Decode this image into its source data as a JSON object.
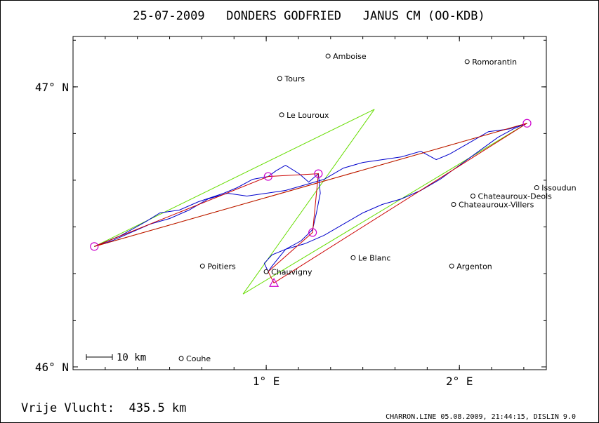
{
  "title": "25-07-2009   DONDERS GODFRIED   JANUS CM (OO-KDB)",
  "footer_left": "Vrije Vlucht:  435.5 km",
  "footer_right": "CHARRON.LINE 05.08.2009, 21:44:15, DISLIN 9.0",
  "scale_label": "10 km",
  "colors": {
    "frame": "#000000",
    "track": "#0000cc",
    "route": "#cc0000",
    "sector": "#66dd00",
    "turnpoint": "#cc00cc"
  },
  "map_data": {
    "lon_range": [
      0.0,
      2.45
    ],
    "lat_range": [
      45.99,
      47.18
    ],
    "lon_ticks": [
      {
        "value": 1,
        "label": "1° E"
      },
      {
        "value": 2,
        "label": "2° E"
      }
    ],
    "lat_ticks": [
      {
        "value": 46,
        "label": "46° N"
      },
      {
        "value": 47,
        "label": "47° N"
      }
    ],
    "cities": [
      {
        "name": "Amboise",
        "lon": 1.32,
        "lat": 47.11
      },
      {
        "name": "Tours",
        "lon": 1.07,
        "lat": 47.03
      },
      {
        "name": "Romorantin",
        "lon": 2.04,
        "lat": 47.09
      },
      {
        "name": "Le Louroux",
        "lon": 1.08,
        "lat": 46.9
      },
      {
        "name": "Issoudun",
        "lon": 2.4,
        "lat": 46.64
      },
      {
        "name": "Chateauroux-Deols",
        "lon": 2.07,
        "lat": 46.61
      },
      {
        "name": "Chateauroux-Villers",
        "lon": 1.97,
        "lat": 46.58
      },
      {
        "name": "Poitiers",
        "lon": 0.67,
        "lat": 46.36
      },
      {
        "name": "Le Blanc",
        "lon": 1.45,
        "lat": 46.39
      },
      {
        "name": "Argenton",
        "lon": 1.96,
        "lat": 46.36
      },
      {
        "name": "Chauvigny",
        "lon": 1.0,
        "lat": 46.34
      },
      {
        "name": "Couhe",
        "lon": 0.56,
        "lat": 46.03
      }
    ],
    "turnpoints": [
      {
        "lon": 0.11,
        "lat": 46.43
      },
      {
        "lon": 1.01,
        "lat": 46.68
      },
      {
        "lon": 1.27,
        "lat": 46.69
      },
      {
        "lon": 1.24,
        "lat": 46.48
      },
      {
        "lon": 2.35,
        "lat": 46.87
      }
    ],
    "finish": {
      "lon": 1.04,
      "lat": 46.3
    },
    "route": [
      {
        "lon": 0.11,
        "lat": 46.43
      },
      {
        "lon": 1.01,
        "lat": 46.68
      },
      {
        "lon": 1.27,
        "lat": 46.69
      },
      {
        "lon": 1.24,
        "lat": 46.48
      },
      {
        "lon": 1.01,
        "lat": 46.34
      },
      {
        "lon": 1.04,
        "lat": 46.3
      },
      {
        "lon": 2.35,
        "lat": 46.87
      },
      {
        "lon": 0.11,
        "lat": 46.43
      }
    ],
    "sectors": [
      [
        {
          "lon": 0.11,
          "lat": 46.43
        },
        {
          "lon": 1.56,
          "lat": 46.92
        },
        {
          "lon": 0.88,
          "lat": 46.26
        },
        {
          "lon": 2.35,
          "lat": 46.87
        },
        {
          "lon": 0.11,
          "lat": 46.43
        }
      ]
    ],
    "track": [
      {
        "lon": 0.11,
        "lat": 46.43
      },
      {
        "lon": 0.25,
        "lat": 46.47
      },
      {
        "lon": 0.38,
        "lat": 46.52
      },
      {
        "lon": 0.45,
        "lat": 46.55
      },
      {
        "lon": 0.55,
        "lat": 46.56
      },
      {
        "lon": 0.65,
        "lat": 46.59
      },
      {
        "lon": 0.78,
        "lat": 46.62
      },
      {
        "lon": 0.85,
        "lat": 46.64
      },
      {
        "lon": 0.93,
        "lat": 46.67
      },
      {
        "lon": 1.01,
        "lat": 46.68
      },
      {
        "lon": 1.05,
        "lat": 46.7
      },
      {
        "lon": 1.1,
        "lat": 46.72
      },
      {
        "lon": 1.17,
        "lat": 46.69
      },
      {
        "lon": 1.22,
        "lat": 46.66
      },
      {
        "lon": 1.27,
        "lat": 46.69
      },
      {
        "lon": 1.28,
        "lat": 46.62
      },
      {
        "lon": 1.26,
        "lat": 46.55
      },
      {
        "lon": 1.24,
        "lat": 46.49
      },
      {
        "lon": 1.18,
        "lat": 46.45
      },
      {
        "lon": 1.1,
        "lat": 46.42
      },
      {
        "lon": 1.03,
        "lat": 46.4
      },
      {
        "lon": 0.99,
        "lat": 46.37
      },
      {
        "lon": 1.01,
        "lat": 46.34
      },
      {
        "lon": 1.03,
        "lat": 46.36
      },
      {
        "lon": 1.1,
        "lat": 46.42
      },
      {
        "lon": 1.2,
        "lat": 46.44
      },
      {
        "lon": 1.3,
        "lat": 46.47
      },
      {
        "lon": 1.4,
        "lat": 46.51
      },
      {
        "lon": 1.5,
        "lat": 46.55
      },
      {
        "lon": 1.6,
        "lat": 46.58
      },
      {
        "lon": 1.7,
        "lat": 46.6
      },
      {
        "lon": 1.8,
        "lat": 46.63
      },
      {
        "lon": 1.9,
        "lat": 46.67
      },
      {
        "lon": 2.0,
        "lat": 46.72
      },
      {
        "lon": 2.1,
        "lat": 46.77
      },
      {
        "lon": 2.2,
        "lat": 46.82
      },
      {
        "lon": 2.28,
        "lat": 46.85
      },
      {
        "lon": 2.35,
        "lat": 46.87
      },
      {
        "lon": 2.26,
        "lat": 46.85
      },
      {
        "lon": 2.15,
        "lat": 46.84
      },
      {
        "lon": 2.05,
        "lat": 46.8
      },
      {
        "lon": 1.95,
        "lat": 46.76
      },
      {
        "lon": 1.88,
        "lat": 46.74
      },
      {
        "lon": 1.8,
        "lat": 46.77
      },
      {
        "lon": 1.7,
        "lat": 46.75
      },
      {
        "lon": 1.6,
        "lat": 46.74
      },
      {
        "lon": 1.5,
        "lat": 46.73
      },
      {
        "lon": 1.4,
        "lat": 46.71
      },
      {
        "lon": 1.3,
        "lat": 46.67
      },
      {
        "lon": 1.2,
        "lat": 46.65
      },
      {
        "lon": 1.1,
        "lat": 46.63
      },
      {
        "lon": 1.0,
        "lat": 46.62
      },
      {
        "lon": 0.9,
        "lat": 46.61
      },
      {
        "lon": 0.8,
        "lat": 46.62
      },
      {
        "lon": 0.7,
        "lat": 46.6
      },
      {
        "lon": 0.6,
        "lat": 46.56
      },
      {
        "lon": 0.5,
        "lat": 46.53
      },
      {
        "lon": 0.4,
        "lat": 46.51
      },
      {
        "lon": 0.3,
        "lat": 46.48
      },
      {
        "lon": 0.2,
        "lat": 46.45
      },
      {
        "lon": 0.11,
        "lat": 46.43
      }
    ]
  }
}
